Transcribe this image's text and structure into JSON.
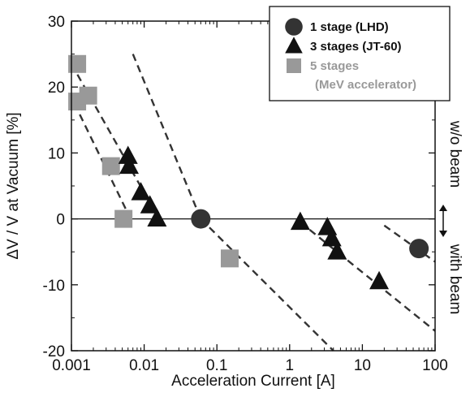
{
  "chart_data": {
    "type": "scatter",
    "xlabel": "Acceleration Current [A]",
    "ylabel": "ΔV / V at Vacuum [%]",
    "xscale": "log",
    "xlim": [
      0.001,
      100
    ],
    "ylim": [
      -20,
      30
    ],
    "x_ticks": [
      0.001,
      0.01,
      0.1,
      1,
      10,
      100
    ],
    "x_tick_labels": [
      "0.001",
      "0.01",
      "0.1",
      "1",
      "10",
      "100"
    ],
    "y_ticks": [
      -20,
      -10,
      0,
      10,
      20,
      30
    ],
    "y_tick_labels": [
      "-20",
      "-10",
      "0",
      "10",
      "20",
      "30"
    ],
    "grid": false,
    "legend_position": "top-right",
    "series": [
      {
        "name": "1 stage (LHD)",
        "marker": "circle",
        "color": "#333333",
        "points": [
          [
            0.06,
            0
          ],
          [
            60,
            -4.5
          ]
        ]
      },
      {
        "name": "3 stages (JT-60)",
        "marker": "triangle",
        "color": "#111111",
        "points": [
          [
            0.006,
            9.5
          ],
          [
            0.0062,
            8
          ],
          [
            0.009,
            4
          ],
          [
            0.012,
            2
          ],
          [
            0.015,
            0
          ],
          [
            1.4,
            -0.5
          ],
          [
            3.3,
            -1.3
          ],
          [
            3.8,
            -3
          ],
          [
            4.5,
            -5
          ],
          [
            17,
            -9.5
          ]
        ]
      },
      {
        "name": "5 stages",
        "name2": "(MeV accelerator)",
        "marker": "square",
        "color": "#999999",
        "points": [
          [
            0.0012,
            23.5
          ],
          [
            0.0012,
            17.8
          ],
          [
            0.0017,
            18.7
          ],
          [
            0.0035,
            8
          ],
          [
            0.0052,
            0
          ],
          [
            0.15,
            -6
          ]
        ]
      }
    ],
    "fit_lines": [
      {
        "from": [
          0.001,
          23.5
        ],
        "to": [
          0.016,
          0
        ]
      },
      {
        "from": [
          0.0011,
          17.5
        ],
        "to": [
          0.0065,
          0
        ]
      },
      {
        "from": [
          0.007,
          25
        ],
        "to": [
          0.06,
          0
        ]
      },
      {
        "from": [
          0.06,
          0
        ],
        "to": [
          4,
          -20
        ]
      },
      {
        "from": [
          1.4,
          -0.5
        ],
        "to": [
          100,
          -17
        ]
      },
      {
        "from": [
          20,
          -1
        ],
        "to": [
          100,
          -6.5
        ]
      }
    ],
    "reference_line_y": 0,
    "annotations": {
      "above": "w/o beam",
      "below": "with beam"
    }
  }
}
